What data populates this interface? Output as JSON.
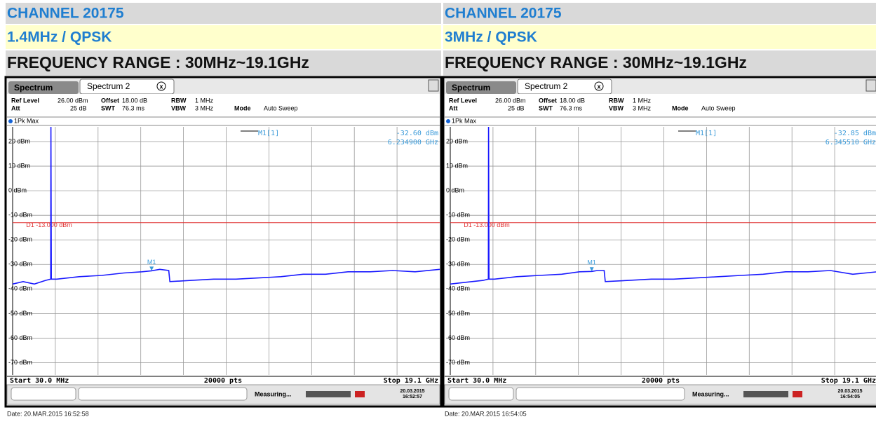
{
  "panels": [
    {
      "channel": "CHANNEL 20175",
      "mode": "1.4MHz / QPSK",
      "range": "FREQUENCY RANGE : 30MHz~19.1GHz",
      "tabs": [
        "Spectrum",
        "Spectrum 2"
      ],
      "settings": [
        [
          "Ref Level",
          "26.00 dBm",
          "Offset",
          "18.00 dB",
          "RBW",
          "1 MHz"
        ],
        [
          "Att",
          "25 dB",
          "SWT",
          "76.3 ms",
          "VBW",
          "3 MHz",
          "Mode",
          "Auto Sweep"
        ]
      ],
      "trace_label": "1Pk Max",
      "marker": {
        "name": "M1[1]",
        "level": "-32.60 dBm",
        "freq": "6.234900 GHz",
        "label": "M1",
        "x": 6.2349,
        "value": -32.6
      },
      "limit_line": {
        "label": "D1  -13.000 dBm",
        "value": -13
      },
      "ylim": [
        -75,
        26
      ],
      "xlim": [
        0.03,
        19.1
      ],
      "yticks": [
        {
          "value": 20,
          "label": "20 dBm"
        },
        {
          "value": 10,
          "label": "10 dBm"
        },
        {
          "value": 0,
          "label": "0 dBm"
        },
        {
          "value": -10,
          "label": "-10 dBm"
        },
        {
          "value": -20,
          "label": "-20 dBm"
        },
        {
          "value": -30,
          "label": "-30 dBm"
        },
        {
          "value": -40,
          "label": "-40 dBm"
        },
        {
          "value": -50,
          "label": "-50 dBm"
        },
        {
          "value": -60,
          "label": "-60 dBm"
        },
        {
          "value": -70,
          "label": "-70 dBm"
        }
      ],
      "trace": {
        "x": [
          0.03,
          0.5,
          1.0,
          1.5,
          1.73,
          1.74,
          1.76,
          2.0,
          3.0,
          4.0,
          5.0,
          5.8,
          6.23,
          6.6,
          7.0,
          7.05,
          8,
          9,
          10,
          11,
          12,
          13,
          14,
          15,
          16,
          17,
          18,
          19.1
        ],
        "values": [
          -38,
          -37,
          -38,
          -36.5,
          -36,
          26,
          -36,
          -36,
          -35,
          -34.5,
          -33.5,
          -33,
          -32.6,
          -32,
          -32.5,
          -37,
          -36.5,
          -36,
          -36,
          -35.5,
          -35,
          -34,
          -34,
          -33,
          -33,
          -32.5,
          -33,
          -32
        ]
      },
      "start": "Start 30.0 MHz",
      "points": "20000 pts",
      "stop": "Stop 19.1 GHz",
      "status": "Measuring...",
      "stamp": [
        "20.03.2015",
        "16:52:57"
      ],
      "date": "Date: 20.MAR.2015  16:52:58"
    },
    {
      "channel": "CHANNEL 20175",
      "mode": "3MHz / QPSK",
      "range": "FREQUENCY RANGE : 30MHz~19.1GHz",
      "tabs": [
        "Spectrum",
        "Spectrum 2"
      ],
      "settings": [
        [
          "Ref Level",
          "26.00 dBm",
          "Offset",
          "18.00 dB",
          "RBW",
          "1 MHz"
        ],
        [
          "Att",
          "25 dB",
          "SWT",
          "76.3 ms",
          "VBW",
          "3 MHz",
          "Mode",
          "Auto Sweep"
        ]
      ],
      "trace_label": "1Pk Max",
      "marker": {
        "name": "M1[1]",
        "level": "-32.85 dBm",
        "freq": "6.345510 GHz",
        "label": "M1",
        "x": 6.34551,
        "value": -32.85
      },
      "limit_line": {
        "label": "D1  -13.000 dBm",
        "value": -13
      },
      "ylim": [
        -75,
        26
      ],
      "xlim": [
        0.03,
        19.1
      ],
      "yticks": [
        {
          "value": 20,
          "label": "20 dBm"
        },
        {
          "value": 10,
          "label": "10 dBm"
        },
        {
          "value": 0,
          "label": "0 dBm"
        },
        {
          "value": -10,
          "label": "-10 dBm"
        },
        {
          "value": -20,
          "label": "-20 dBm"
        },
        {
          "value": -30,
          "label": "-30 dBm"
        },
        {
          "value": -40,
          "label": "-40 dBm"
        },
        {
          "value": -50,
          "label": "-50 dBm"
        },
        {
          "value": -60,
          "label": "-60 dBm"
        },
        {
          "value": -70,
          "label": "-70 dBm"
        }
      ],
      "trace": {
        "x": [
          0.03,
          0.5,
          1.0,
          1.5,
          1.73,
          1.74,
          1.76,
          2.0,
          3.0,
          4.0,
          5.0,
          5.8,
          6.35,
          6.6,
          6.9,
          6.95,
          8,
          9,
          10,
          11,
          12,
          13,
          14,
          15,
          16,
          17,
          18,
          19.1
        ],
        "values": [
          -38,
          -37.5,
          -37,
          -36.5,
          -36,
          26,
          -36,
          -36,
          -35,
          -34.5,
          -34,
          -33,
          -32.85,
          -32.5,
          -32.5,
          -37,
          -36.5,
          -36,
          -36,
          -35.5,
          -35,
          -34.5,
          -34,
          -33,
          -33,
          -32.5,
          -34,
          -33
        ]
      },
      "start": "Start 30.0 MHz",
      "points": "20000 pts",
      "stop": "Stop 19.1 GHz",
      "status": "Measuring...",
      "stamp": [
        "20.03.2015",
        "16:54:05"
      ],
      "date": "Date: 20.MAR.2015  16:54:05"
    }
  ]
}
